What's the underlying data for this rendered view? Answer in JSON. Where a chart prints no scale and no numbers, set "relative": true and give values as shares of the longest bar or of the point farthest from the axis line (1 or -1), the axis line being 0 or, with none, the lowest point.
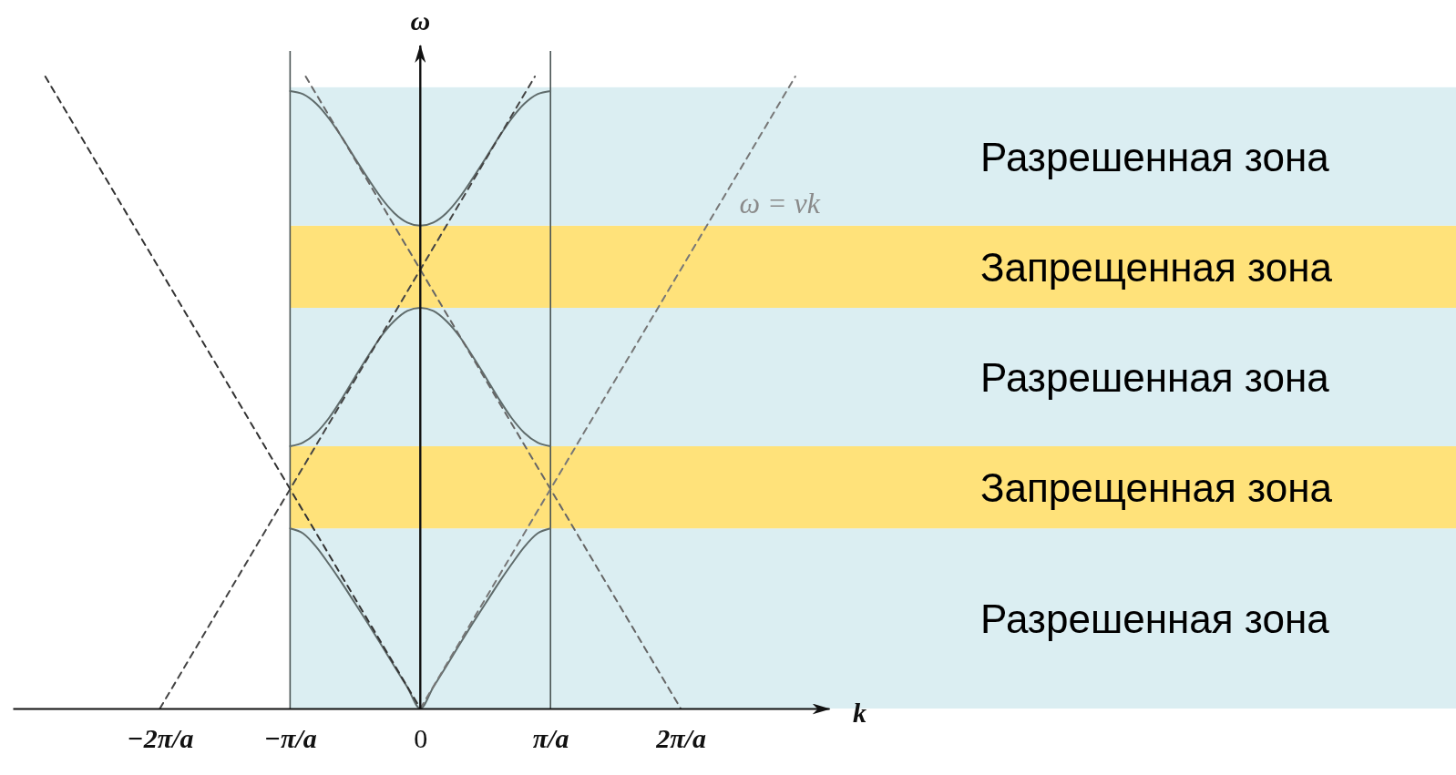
{
  "chart_data": {
    "type": "line",
    "xlabel": "k",
    "ylabel": "ω",
    "relative": true,
    "xlim": [
      -3.13,
      3.14
    ],
    "xticks": [
      {
        "value": -2,
        "label": "−2π/a"
      },
      {
        "value": -1,
        "label": "−π/a"
      },
      0,
      {
        "value": 1,
        "label": "π/a"
      },
      {
        "value": 2,
        "label": "2π/a"
      }
    ],
    "x": [
      -1,
      -0.9,
      -0.8,
      -0.7,
      -0.6,
      -0.5,
      -0.4,
      -0.3,
      -0.2,
      -0.1,
      0,
      0.1,
      0.2,
      0.3,
      0.4,
      0.5,
      0.6,
      0.7,
      0.8,
      0.9,
      1
    ],
    "series": [
      {
        "color": "#5f6b6b",
        "values": [
          0.285,
          0.277,
          0.256,
          0.228,
          0.198,
          0.166,
          0.134,
          0.101,
          0.067,
          0.034,
          0,
          0.034,
          0.067,
          0.101,
          0.134,
          0.166,
          0.198,
          0.228,
          0.256,
          0.277,
          0.285
        ]
      },
      {
        "color": "#5f6b6b",
        "values": [
          0.415,
          0.421,
          0.436,
          0.46,
          0.491,
          0.525,
          0.558,
          0.589,
          0.613,
          0.629,
          0.634,
          0.629,
          0.613,
          0.589,
          0.558,
          0.525,
          0.491,
          0.46,
          0.436,
          0.421,
          0.415
        ]
      },
      {
        "color": "#5f6b6b",
        "values": [
          0.977,
          0.972,
          0.957,
          0.933,
          0.903,
          0.87,
          0.838,
          0.808,
          0.784,
          0.769,
          0.764,
          0.769,
          0.784,
          0.808,
          0.838,
          0.87,
          0.903,
          0.933,
          0.957,
          0.972,
          0.977
        ]
      },
      {
        "x": [
          0,
          2.88
        ],
        "values": [
          0,
          1
        ],
        "color": "#777777",
        "line_style": "dashed"
      },
      {
        "x": [
          -2.88,
          0
        ],
        "values": [
          1,
          0
        ],
        "color": "#333333",
        "line_style": "dashed"
      },
      {
        "x": [
          -2,
          0.88
        ],
        "values": [
          0,
          1
        ],
        "color": "#444444",
        "line_style": "dashed"
      },
      {
        "x": [
          -0.88,
          2
        ],
        "values": [
          1,
          0
        ],
        "color": "#666666",
        "line_style": "dashed"
      }
    ],
    "ref_lines": [
      {
        "axis": "x",
        "value": -1,
        "color": "#4a5454"
      },
      {
        "axis": "x",
        "value": 1,
        "color": "#4a5454"
      }
    ],
    "bands": [
      {
        "axis": "y",
        "from": 0,
        "to": 0.285,
        "label": "Разрешенная зона",
        "color": "#dbeef2"
      },
      {
        "axis": "y",
        "from": 0.285,
        "to": 0.415,
        "label": "Запрещенная зона",
        "color": "#ffe27a"
      },
      {
        "axis": "y",
        "from": 0.415,
        "to": 0.634,
        "label": "Разрешенная зона",
        "color": "#dbeef2"
      },
      {
        "axis": "y",
        "from": 0.634,
        "to": 0.764,
        "label": "Запрещенная зона",
        "color": "#ffe27a"
      },
      {
        "axis": "y",
        "from": 0.764,
        "to": 0.983,
        "label": "Разрешенная зона",
        "color": "#dbeef2"
      }
    ],
    "annotations": [
      {
        "text": "ω = vk",
        "x": 2.31,
        "y": 0.8
      }
    ]
  }
}
